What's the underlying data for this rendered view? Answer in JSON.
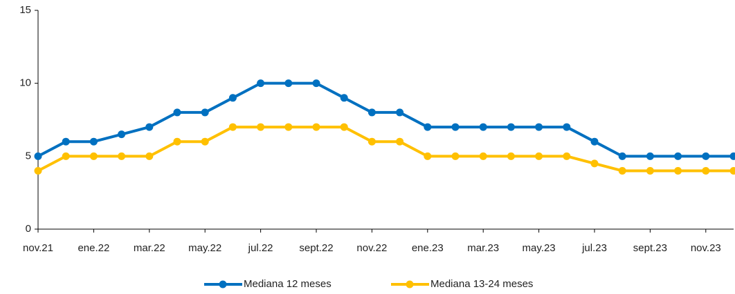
{
  "chart_data": {
    "type": "line",
    "categories": [
      "nov.21",
      null,
      "ene.22",
      null,
      "mar.22",
      null,
      "may.22",
      null,
      "jul.22",
      null,
      "sept.22",
      null,
      "nov.22",
      null,
      "ene.23",
      null,
      "mar.23",
      null,
      "may.23",
      null,
      "jul.23",
      null,
      "sept.23",
      null,
      "nov.23",
      null
    ],
    "series": [
      {
        "name": "Mediana 12 meses",
        "color": "#0070c0",
        "values": [
          5,
          6,
          6,
          6.5,
          7,
          8,
          8,
          9,
          10,
          10,
          10,
          9,
          8,
          8,
          7,
          7,
          7,
          7,
          7,
          7,
          6,
          5,
          5,
          5,
          5,
          5
        ]
      },
      {
        "name": "Mediana 13-24 meses",
        "color": "#ffc000",
        "values": [
          4,
          5,
          5,
          5,
          5,
          6,
          6,
          7,
          7,
          7,
          7,
          7,
          6,
          6,
          5,
          5,
          5,
          5,
          5,
          5,
          4.5,
          4,
          4,
          4,
          4,
          4
        ]
      }
    ],
    "ylim": [
      0,
      15
    ],
    "yticks": [
      0,
      5,
      10,
      15
    ],
    "grid": false,
    "legend": "bottom"
  }
}
